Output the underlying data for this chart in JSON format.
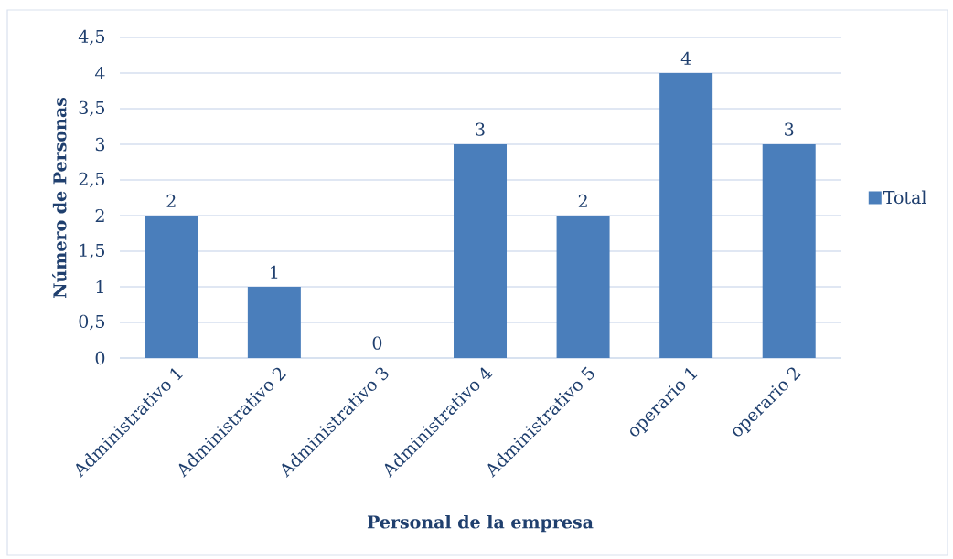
{
  "chart_data": {
    "type": "bar",
    "xlabel": "Personal de la empresa",
    "ylabel": "Número de Personas",
    "categories": [
      "Administrativo 1",
      "Administrativo 2",
      "Administrativo 3",
      "Administrativo 4",
      "Administrativo 5",
      "operario 1",
      "operario 2"
    ],
    "series": [
      {
        "name": "Total",
        "color": "#4a7ebb",
        "values": [
          2,
          1,
          0,
          3,
          2,
          4,
          3
        ]
      }
    ],
    "ylim": [
      0,
      4.5
    ],
    "yticks": [
      0,
      {
        "value": 0.5,
        "label": "0,5"
      },
      1,
      {
        "value": 1.5,
        "label": "1,5"
      },
      2,
      {
        "value": 2.5,
        "label": "2,5"
      },
      3,
      {
        "value": 3.5,
        "label": "3,5"
      },
      4,
      {
        "value": 4.5,
        "label": "4,5"
      }
    ],
    "grid": "y",
    "legend": "right",
    "data_labels": true
  }
}
